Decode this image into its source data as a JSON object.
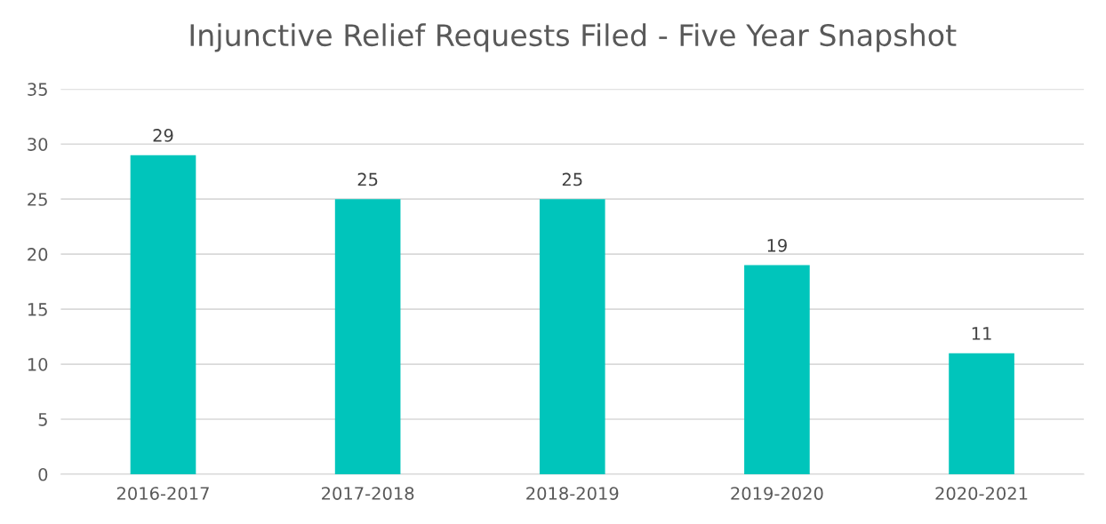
{
  "chart_data": {
    "type": "bar",
    "title": "Injunctive Relief Requests Filed - Five Year Snapshot",
    "categories": [
      "2016-2017",
      "2017-2018",
      "2018-2019",
      "2019-2020",
      "2020-2021"
    ],
    "values": [
      29,
      25,
      25,
      19,
      11
    ],
    "color": "#00c5bb",
    "ylim": [
      0,
      35
    ],
    "yticks": [
      0,
      5,
      10,
      15,
      20,
      25,
      30,
      35
    ],
    "grid": "y",
    "data_labels": true,
    "legend": false
  }
}
